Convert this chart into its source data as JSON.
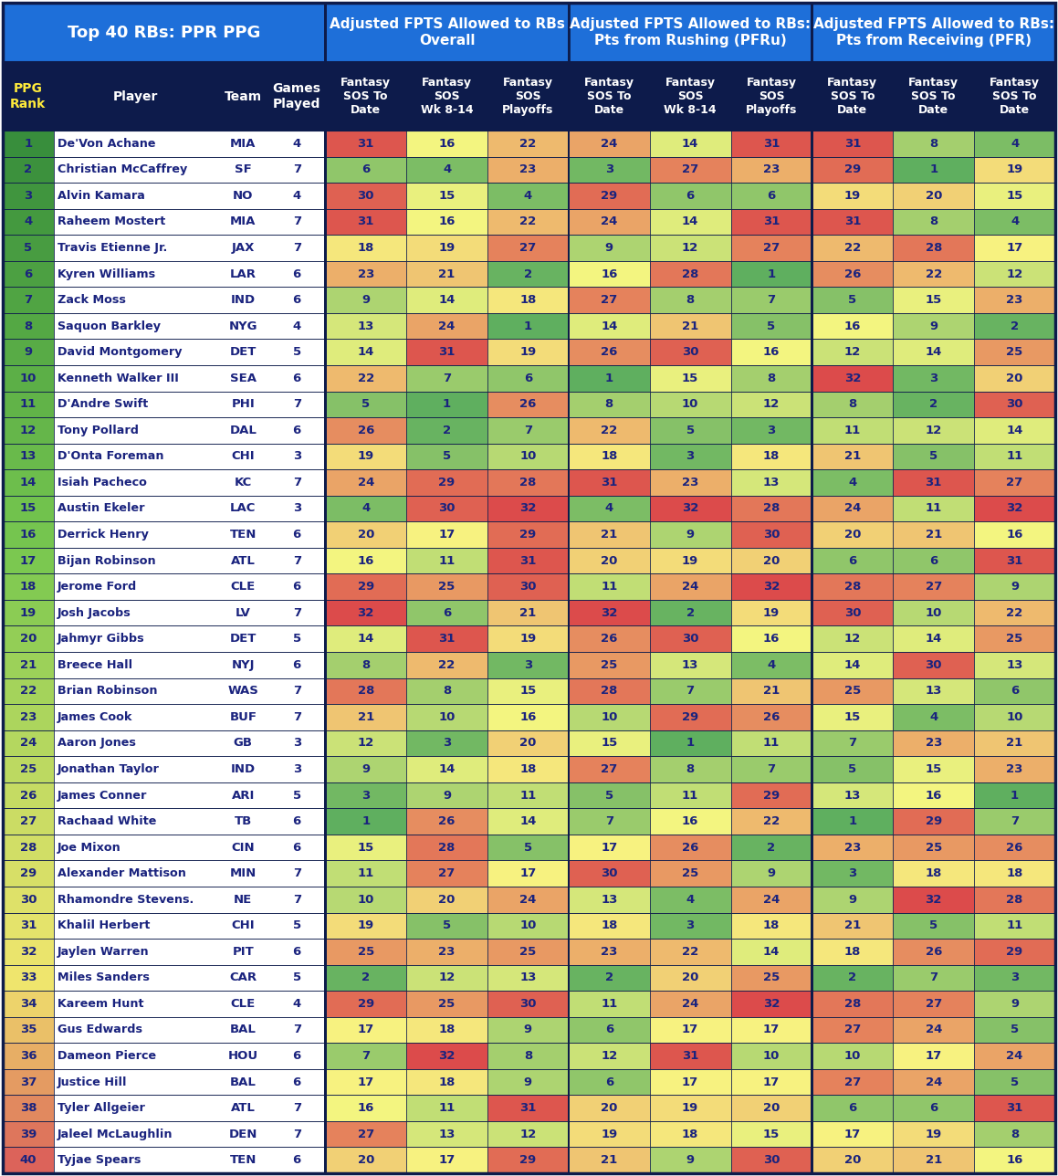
{
  "title_left": "Top 40 RBs: PPR PPG",
  "title_mid": "Adjusted FPTS Allowed to RBs\nOverall",
  "title_right1": "Adjusted FPTS Allowed to RBs:\nPts from Rushing (PFRu)",
  "title_right2": "Adjusted FPTS Allowed to RBs:\nPts from Receiving (PFR)",
  "players": [
    [
      1,
      "De'Von Achane",
      "MIA",
      4,
      31,
      16,
      22,
      24,
      14,
      31,
      31,
      8,
      4
    ],
    [
      2,
      "Christian McCaffrey",
      "SF",
      7,
      6,
      4,
      23,
      3,
      27,
      23,
      29,
      1,
      19
    ],
    [
      3,
      "Alvin Kamara",
      "NO",
      4,
      30,
      15,
      4,
      29,
      6,
      6,
      19,
      20,
      15
    ],
    [
      4,
      "Raheem Mostert",
      "MIA",
      7,
      31,
      16,
      22,
      24,
      14,
      31,
      31,
      8,
      4
    ],
    [
      5,
      "Travis Etienne Jr.",
      "JAX",
      7,
      18,
      19,
      27,
      9,
      12,
      27,
      22,
      28,
      17
    ],
    [
      6,
      "Kyren Williams",
      "LAR",
      6,
      23,
      21,
      2,
      16,
      28,
      1,
      26,
      22,
      12
    ],
    [
      7,
      "Zack Moss",
      "IND",
      6,
      9,
      14,
      18,
      27,
      8,
      7,
      5,
      15,
      23
    ],
    [
      8,
      "Saquon Barkley",
      "NYG",
      4,
      13,
      24,
      1,
      14,
      21,
      5,
      16,
      9,
      2
    ],
    [
      9,
      "David Montgomery",
      "DET",
      5,
      14,
      31,
      19,
      26,
      30,
      16,
      12,
      14,
      25
    ],
    [
      10,
      "Kenneth Walker III",
      "SEA",
      6,
      22,
      7,
      6,
      1,
      15,
      8,
      32,
      3,
      20
    ],
    [
      11,
      "D'Andre Swift",
      "PHI",
      7,
      5,
      1,
      26,
      8,
      10,
      12,
      8,
      2,
      30
    ],
    [
      12,
      "Tony Pollard",
      "DAL",
      6,
      26,
      2,
      7,
      22,
      5,
      3,
      11,
      12,
      14
    ],
    [
      13,
      "D'Onta Foreman",
      "CHI",
      3,
      19,
      5,
      10,
      18,
      3,
      18,
      21,
      5,
      11
    ],
    [
      14,
      "Isiah Pacheco",
      "KC",
      7,
      24,
      29,
      28,
      31,
      23,
      13,
      4,
      31,
      27
    ],
    [
      15,
      "Austin Ekeler",
      "LAC",
      3,
      4,
      30,
      32,
      4,
      32,
      28,
      24,
      11,
      32
    ],
    [
      16,
      "Derrick Henry",
      "TEN",
      6,
      20,
      17,
      29,
      21,
      9,
      30,
      20,
      21,
      16
    ],
    [
      17,
      "Bijan Robinson",
      "ATL",
      7,
      16,
      11,
      31,
      20,
      19,
      20,
      6,
      6,
      31
    ],
    [
      18,
      "Jerome Ford",
      "CLE",
      6,
      29,
      25,
      30,
      11,
      24,
      32,
      28,
      27,
      9
    ],
    [
      19,
      "Josh Jacobs",
      "LV",
      7,
      32,
      6,
      21,
      32,
      2,
      19,
      30,
      10,
      22
    ],
    [
      20,
      "Jahmyr Gibbs",
      "DET",
      5,
      14,
      31,
      19,
      26,
      30,
      16,
      12,
      14,
      25
    ],
    [
      21,
      "Breece Hall",
      "NYJ",
      6,
      8,
      22,
      3,
      25,
      13,
      4,
      14,
      30,
      13
    ],
    [
      22,
      "Brian Robinson",
      "WAS",
      7,
      28,
      8,
      15,
      28,
      7,
      21,
      25,
      13,
      6
    ],
    [
      23,
      "James Cook",
      "BUF",
      7,
      21,
      10,
      16,
      10,
      29,
      26,
      15,
      4,
      10
    ],
    [
      24,
      "Aaron Jones",
      "GB",
      3,
      12,
      3,
      20,
      15,
      1,
      11,
      7,
      23,
      21
    ],
    [
      25,
      "Jonathan Taylor",
      "IND",
      3,
      9,
      14,
      18,
      27,
      8,
      7,
      5,
      15,
      23
    ],
    [
      26,
      "James Conner",
      "ARI",
      5,
      3,
      9,
      11,
      5,
      11,
      29,
      13,
      16,
      1
    ],
    [
      27,
      "Rachaad White",
      "TB",
      6,
      1,
      26,
      14,
      7,
      16,
      22,
      1,
      29,
      7
    ],
    [
      28,
      "Joe Mixon",
      "CIN",
      6,
      15,
      28,
      5,
      17,
      26,
      2,
      23,
      25,
      26
    ],
    [
      29,
      "Alexander Mattison",
      "MIN",
      7,
      11,
      27,
      17,
      30,
      25,
      9,
      3,
      18,
      18
    ],
    [
      30,
      "Rhamondre Stevens.",
      "NE",
      7,
      10,
      20,
      24,
      13,
      4,
      24,
      9,
      32,
      28
    ],
    [
      31,
      "Khalil Herbert",
      "CHI",
      5,
      19,
      5,
      10,
      18,
      3,
      18,
      21,
      5,
      11
    ],
    [
      32,
      "Jaylen Warren",
      "PIT",
      6,
      25,
      23,
      25,
      23,
      22,
      14,
      18,
      26,
      29
    ],
    [
      33,
      "Miles Sanders",
      "CAR",
      5,
      2,
      12,
      13,
      2,
      20,
      25,
      2,
      7,
      3
    ],
    [
      34,
      "Kareem Hunt",
      "CLE",
      4,
      29,
      25,
      30,
      11,
      24,
      32,
      28,
      27,
      9
    ],
    [
      35,
      "Gus Edwards",
      "BAL",
      7,
      17,
      18,
      9,
      6,
      17,
      17,
      27,
      24,
      5
    ],
    [
      36,
      "Dameon Pierce",
      "HOU",
      6,
      7,
      32,
      8,
      12,
      31,
      10,
      10,
      17,
      24
    ],
    [
      37,
      "Justice Hill",
      "BAL",
      6,
      17,
      18,
      9,
      6,
      17,
      17,
      27,
      24,
      5
    ],
    [
      38,
      "Tyler Allgeier",
      "ATL",
      7,
      16,
      11,
      31,
      20,
      19,
      20,
      6,
      6,
      31
    ],
    [
      39,
      "Jaleel McLaughlin",
      "DEN",
      7,
      27,
      13,
      12,
      19,
      18,
      15,
      17,
      19,
      8
    ],
    [
      40,
      "Tyjae Spears",
      "TEN",
      6,
      20,
      17,
      29,
      21,
      9,
      30,
      20,
      21,
      16
    ]
  ],
  "blue": "#1E6FD9",
  "dark_navy": "#0D1B4B",
  "yellow_text": "#FFEB3B",
  "white": "#FFFFFF",
  "text_dark": "#1A237E",
  "border_dark": "#1A237E",
  "section_border": "#0D1B4B"
}
